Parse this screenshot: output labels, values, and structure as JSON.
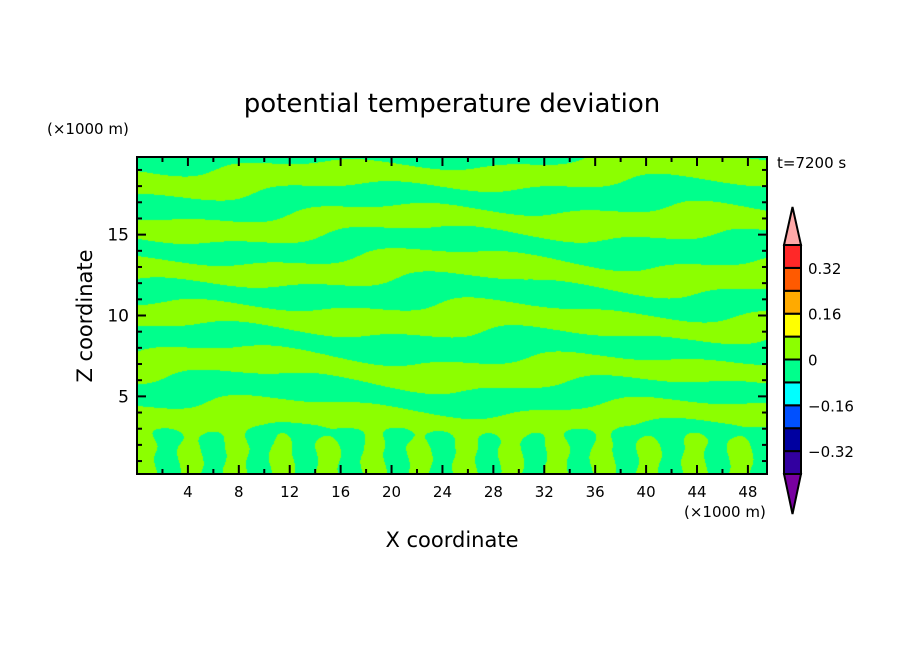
{
  "chart_data": {
    "type": "heatmap",
    "title": "potential temperature deviation",
    "xlabel": "X coordinate",
    "ylabel": "Z coordinate",
    "x_unit": "(×1000 m)",
    "y_unit": "(×1000 m)",
    "annotation": "t=7200 s",
    "xlim": [
      0,
      49.5
    ],
    "ylim": [
      0.2,
      19.8
    ],
    "x_ticks": [
      4,
      8,
      12,
      16,
      20,
      24,
      28,
      32,
      36,
      40,
      44,
      48
    ],
    "y_ticks": [
      5,
      10,
      15
    ],
    "grid": false,
    "colorbar": {
      "position": "right",
      "levels": [
        -0.4,
        -0.32,
        -0.24,
        -0.16,
        -0.08,
        0,
        0.08,
        0.16,
        0.24,
        0.32,
        0.4
      ],
      "labels": [
        "0.32",
        "0.16",
        "0",
        "−0.16",
        "−0.32"
      ],
      "label_values": [
        0.32,
        0.16,
        0,
        -0.16,
        -0.32
      ],
      "colors": [
        "#7800a0",
        "#3200a0",
        "#0000a0",
        "#0050ff",
        "#00ffff",
        "#00ff8c",
        "#8cff00",
        "#ffff00",
        "#ffaa00",
        "#ff5a00",
        "#ff2828",
        "#ffa8a8"
      ],
      "extend": "both"
    },
    "field_description_levels_present": [
      -0.08,
      0,
      0.08
    ]
  }
}
